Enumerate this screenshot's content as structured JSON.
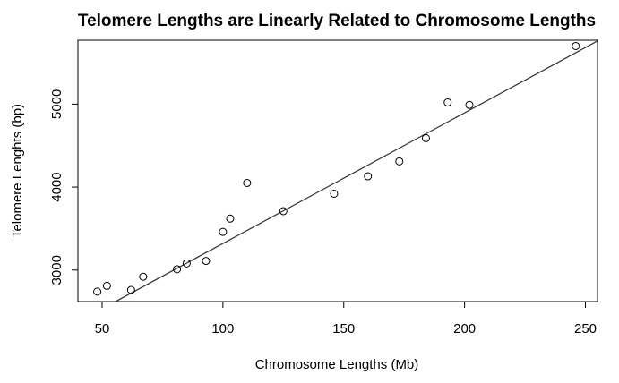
{
  "chart_data": {
    "type": "scatter",
    "title": "Telomere Lengths are Linearly Related to Chromosome Lengths",
    "xlabel": "Chromosome Lengths (Mb)",
    "ylabel": "Telomere Lenghts (bp)",
    "xlim": [
      40,
      255
    ],
    "ylim": [
      2620,
      5770
    ],
    "x_ticks": [
      50,
      100,
      150,
      200,
      250
    ],
    "y_ticks": [
      3000,
      4000,
      5000
    ],
    "grid": false,
    "legend": "none",
    "marker": "open-circle",
    "points": [
      {
        "x": 48,
        "y": 2740
      },
      {
        "x": 52,
        "y": 2810
      },
      {
        "x": 62,
        "y": 2760
      },
      {
        "x": 67,
        "y": 2920
      },
      {
        "x": 81,
        "y": 3010
      },
      {
        "x": 85,
        "y": 3080
      },
      {
        "x": 93,
        "y": 3110
      },
      {
        "x": 100,
        "y": 3460
      },
      {
        "x": 103,
        "y": 3620
      },
      {
        "x": 110,
        "y": 4050
      },
      {
        "x": 125,
        "y": 3710
      },
      {
        "x": 146,
        "y": 3920
      },
      {
        "x": 160,
        "y": 4130
      },
      {
        "x": 173,
        "y": 4310
      },
      {
        "x": 184,
        "y": 4590
      },
      {
        "x": 193,
        "y": 5020
      },
      {
        "x": 202,
        "y": 4990
      },
      {
        "x": 246,
        "y": 5700
      }
    ],
    "fit_line": {
      "intercept": 1745,
      "slope": 15.75
    },
    "colors": {
      "points": "#000000",
      "line": "#3c3c3c",
      "background": "#ffffff"
    }
  }
}
